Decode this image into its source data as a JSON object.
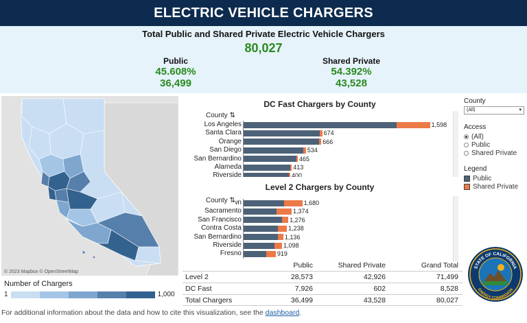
{
  "header": {
    "title": "ELECTRIC VEHICLE CHARGERS"
  },
  "summary": {
    "subtitle": "Total Public and Shared Private Electric Vehicle Chargers",
    "total": "80,027",
    "public": {
      "label": "Public",
      "percent": "45.608%",
      "count": "36,499"
    },
    "shared_private": {
      "label": "Shared Private",
      "percent": "54.392%",
      "count": "43,528"
    }
  },
  "map": {
    "credit": "© 2023 Mapbox  © OpenStreetMap",
    "legend_title": "Number of Chargers",
    "legend_min": "1",
    "legend_max": "1,000",
    "legend_colors": [
      "#c9def3",
      "#a5c5e6",
      "#7ea6cf",
      "#577fab",
      "#34628f"
    ]
  },
  "charts": {
    "dc_title": "DC Fast Chargers by County",
    "l2_title": "Level 2 Chargers by County",
    "county_header": "County"
  },
  "chart_data": [
    {
      "type": "bar",
      "title": "DC Fast Chargers by County",
      "stacked": true,
      "orientation": "horizontal",
      "categories": [
        "Los Angeles",
        "Santa Clara",
        "Orange",
        "San Diego",
        "San Bernardino",
        "Alameda",
        "Riverside"
      ],
      "series": [
        {
          "name": "Public",
          "values": [
            1312,
            650,
            648,
            512,
            455,
            399,
            390
          ]
        },
        {
          "name": "Shared Private",
          "values": [
            286,
            24,
            18,
            22,
            10,
            14,
            10
          ]
        }
      ],
      "totals": [
        "1,598",
        "674",
        "666",
        "534",
        "465",
        "413",
        "400"
      ],
      "xlim": [
        0,
        1800
      ]
    },
    {
      "type": "bar",
      "title": "Level 2 Chargers by County",
      "stacked": true,
      "orientation": "horizontal",
      "categories": [
        "Unknown",
        "Sacramento",
        "San Francisco",
        "Contra Costa",
        "San Bernardino",
        "Riverside",
        "Fresno"
      ],
      "series": [
        {
          "name": "Public",
          "values": [
            1150,
            950,
            1100,
            990,
            980,
            880,
            650
          ]
        },
        {
          "name": "Shared Private",
          "values": [
            530,
            424,
            176,
            248,
            156,
            218,
            269
          ]
        }
      ],
      "totals": [
        "1,680",
        "1,374",
        "1,276",
        "1,238",
        "1,136",
        "1,098",
        "919"
      ],
      "xlim": [
        0,
        6000
      ]
    }
  ],
  "table": {
    "headers": [
      "",
      "Public",
      "Shared Private",
      "Grand Total"
    ],
    "rows": [
      [
        "Level 2",
        "28,573",
        "42,926",
        "71,499"
      ],
      [
        "DC Fast",
        "7,926",
        "602",
        "8,528"
      ],
      [
        "Total Chargers",
        "36,499",
        "43,528",
        "80,027"
      ]
    ]
  },
  "filters": {
    "county_label": "County",
    "county_value": "(All)",
    "access_label": "Access",
    "access_options": [
      "(All)",
      "Public",
      "Shared Private"
    ],
    "legend_label": "Legend",
    "legend_items": [
      "Public",
      "Shared Private"
    ],
    "public_color": "#4d6278",
    "shared_color": "#ec7a48"
  },
  "seal": {
    "top_text": "STATE OF CALIFORNIA",
    "bottom_text": "ENERGY COMMISSION"
  },
  "footer": {
    "text": "For additional information about the data and how to cite this visualization, see the ",
    "link": "dashboard",
    "end": "."
  }
}
